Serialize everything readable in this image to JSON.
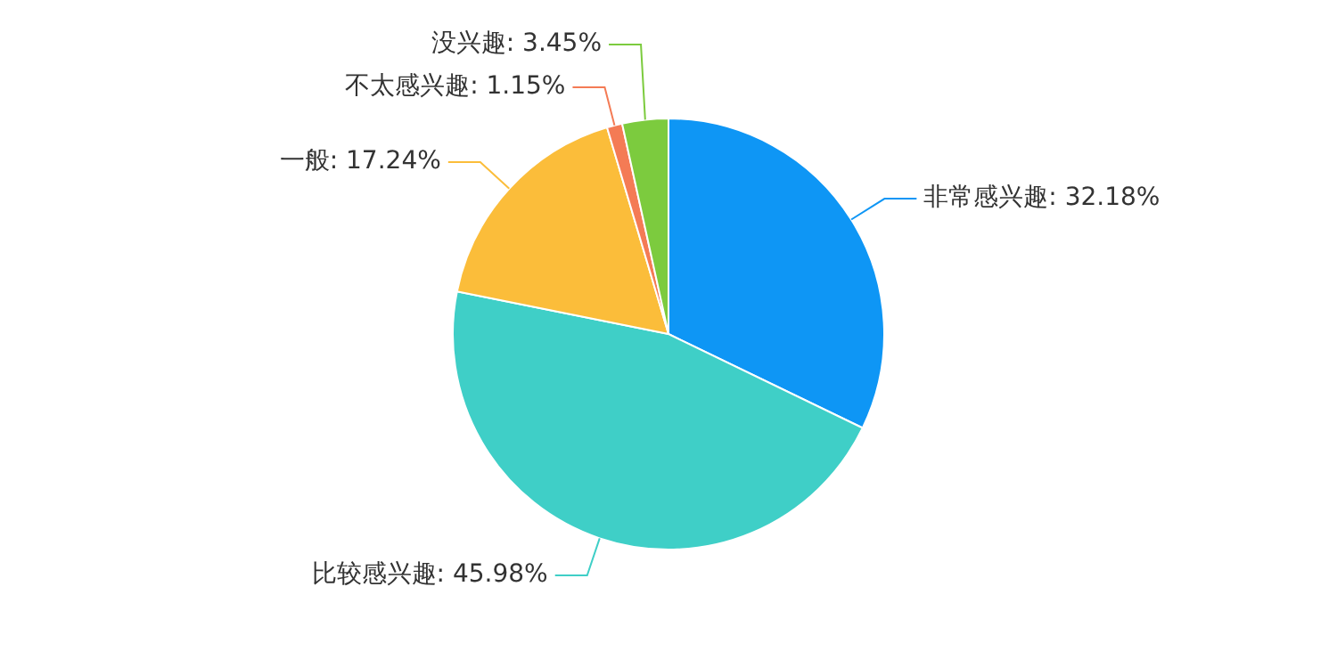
{
  "chart_data": {
    "type": "pie",
    "categories": [
      "非常感兴趣",
      "比较感兴趣",
      "一般",
      "不太感兴趣",
      "没兴趣"
    ],
    "values": [
      32.18,
      45.98,
      17.24,
      1.15,
      3.45
    ],
    "value_labels": [
      "32.18%",
      "45.98%",
      "17.24%",
      "1.15%",
      "3.45%"
    ],
    "colors": [
      "#0e96f5",
      "#3fcfc7",
      "#fbbd3a",
      "#f47b55",
      "#7ccb3e"
    ],
    "legend": false
  }
}
